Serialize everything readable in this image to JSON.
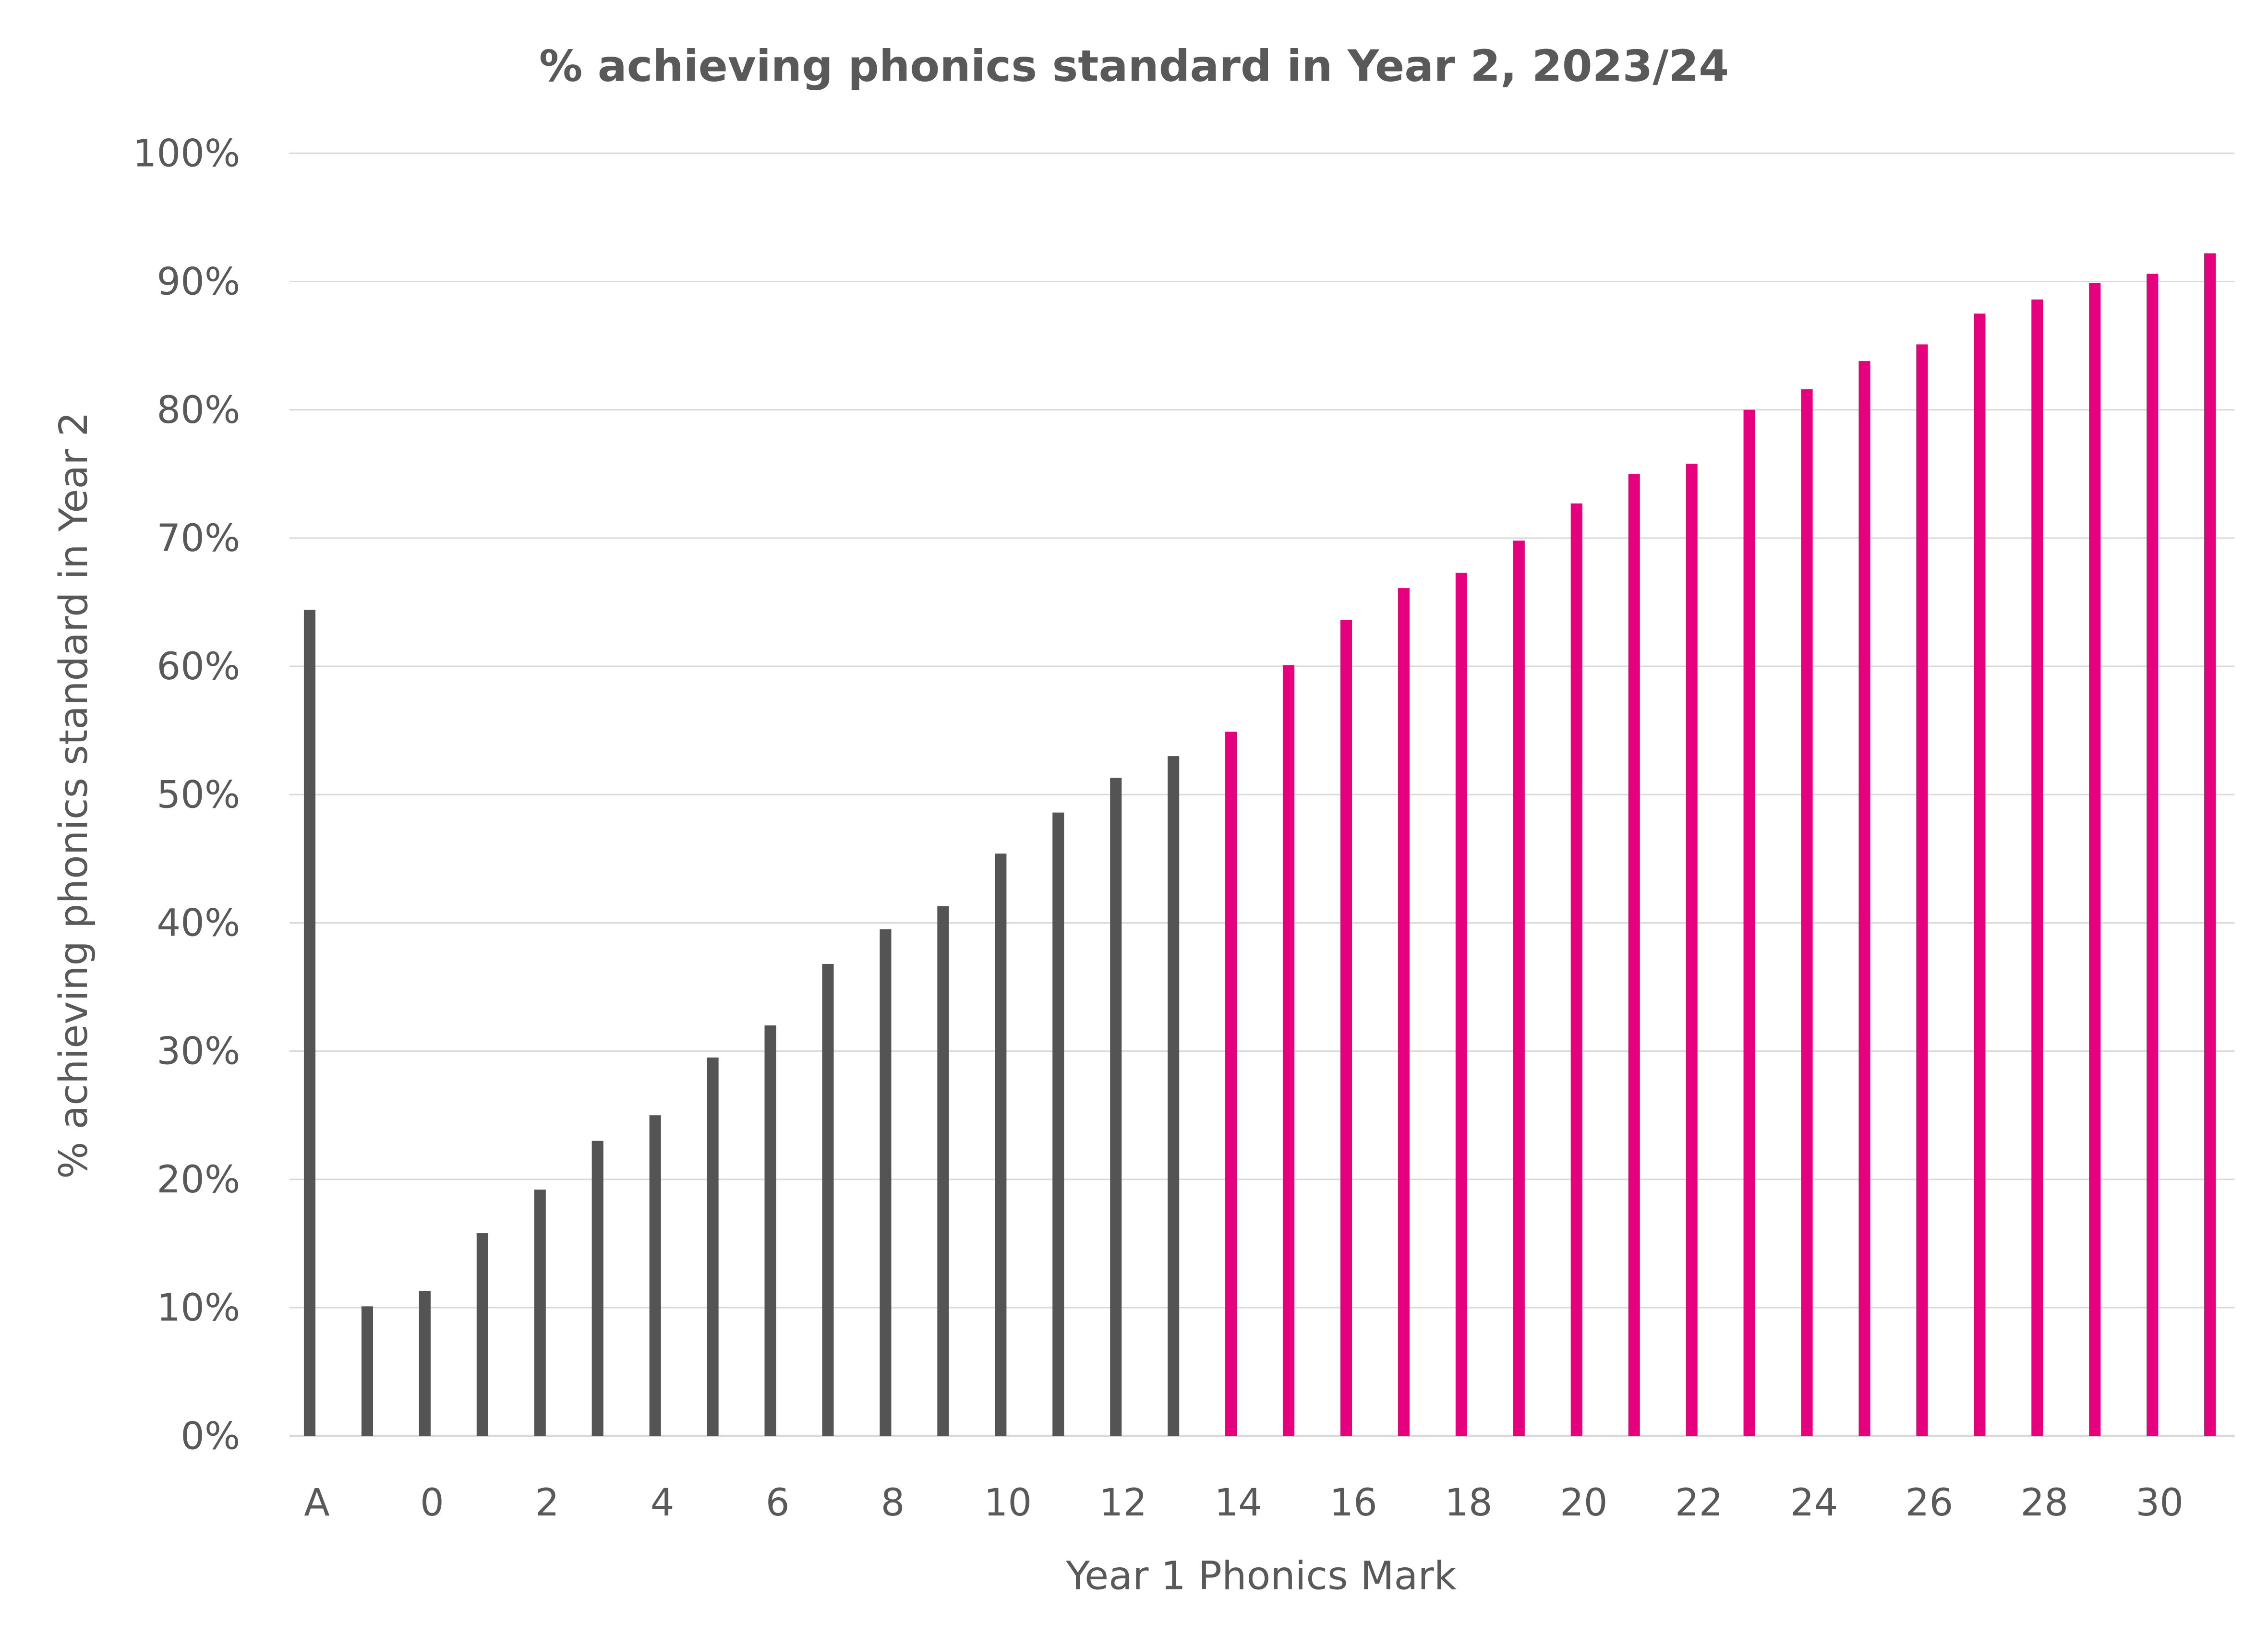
{
  "chart_data": {
    "type": "bar",
    "title": "% achieving phonics standard in Year 2, 2023/24",
    "xlabel": "Year 1 Phonics Mark",
    "ylabel": "% achieving phonics standard in Year 2",
    "ylim": [
      0,
      100
    ],
    "yticks": [
      "0%",
      "10%",
      "20%",
      "30%",
      "40%",
      "50%",
      "60%",
      "70%",
      "80%",
      "90%",
      "100%"
    ],
    "grid": true,
    "legend": "none",
    "categories": [
      "A",
      "",
      "0",
      "1",
      "2",
      "3",
      "4",
      "5",
      "6",
      "7",
      "8",
      "9",
      "10",
      "11",
      "12",
      "13",
      "14",
      "15",
      "16",
      "17",
      "18",
      "19",
      "20",
      "21",
      "22",
      "23",
      "24",
      "25",
      "26",
      "27",
      "28",
      "29",
      "30",
      "31"
    ],
    "tick_labels": [
      "A",
      "0",
      "2",
      "4",
      "6",
      "8",
      "10",
      "12",
      "14",
      "16",
      "18",
      "20",
      "22",
      "24",
      "26",
      "28",
      "30"
    ],
    "values": [
      64.4,
      10.1,
      11.3,
      15.8,
      19.2,
      23.0,
      25.0,
      29.5,
      32.0,
      36.8,
      39.5,
      41.3,
      45.4,
      48.6,
      51.3,
      53.0,
      54.9,
      60.1,
      63.6,
      66.1,
      67.3,
      69.8,
      72.7,
      75.0,
      75.8,
      80.0,
      81.6,
      83.8,
      85.1,
      87.5,
      88.6,
      89.9,
      90.6,
      92.2
    ],
    "colors": {
      "below_threshold": "#545454",
      "at_or_above_threshold": "#E6007E",
      "grid": "#D9D9D9",
      "text": "#595959"
    },
    "threshold_category": "14"
  }
}
